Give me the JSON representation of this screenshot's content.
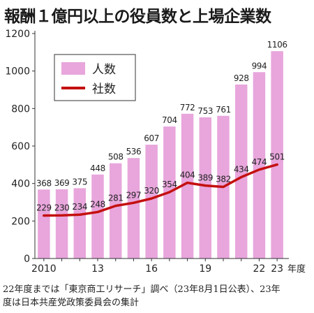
{
  "title": "報酬１億円以上の役員数と上場企業数",
  "chart_data": {
    "type": "bar",
    "categories": [
      "2010",
      "2011",
      "2012",
      "2013",
      "2014",
      "2015",
      "2016",
      "2017",
      "2018",
      "2019",
      "2020",
      "2021",
      "2022",
      "2023"
    ],
    "series": [
      {
        "name": "人数",
        "type": "bar",
        "color": "#e8a6dc",
        "values": [
          368,
          369,
          375,
          448,
          508,
          536,
          607,
          704,
          772,
          753,
          761,
          928,
          994,
          1106
        ]
      },
      {
        "name": "社数",
        "type": "line",
        "color": "#c41010",
        "values": [
          229,
          230,
          234,
          248,
          281,
          297,
          320,
          354,
          404,
          389,
          382,
          434,
          474,
          501
        ]
      }
    ],
    "x_tick_labels": [
      "2010",
      "",
      "",
      "13",
      "",
      "",
      "16",
      "",
      "",
      "19",
      "",
      "",
      "22",
      "23"
    ],
    "x_unit": "年度",
    "ylim": [
      0,
      1200
    ],
    "yticks": [
      0,
      200,
      400,
      600,
      800,
      1000,
      1200
    ],
    "grid": false,
    "legend_position": "top-left"
  },
  "footnote": {
    "line1": "22年度までは「東京商工リサーチ」調べ（23年8月1日公表）、23年",
    "line2": "度は日本共産党政策委員会の集計"
  }
}
